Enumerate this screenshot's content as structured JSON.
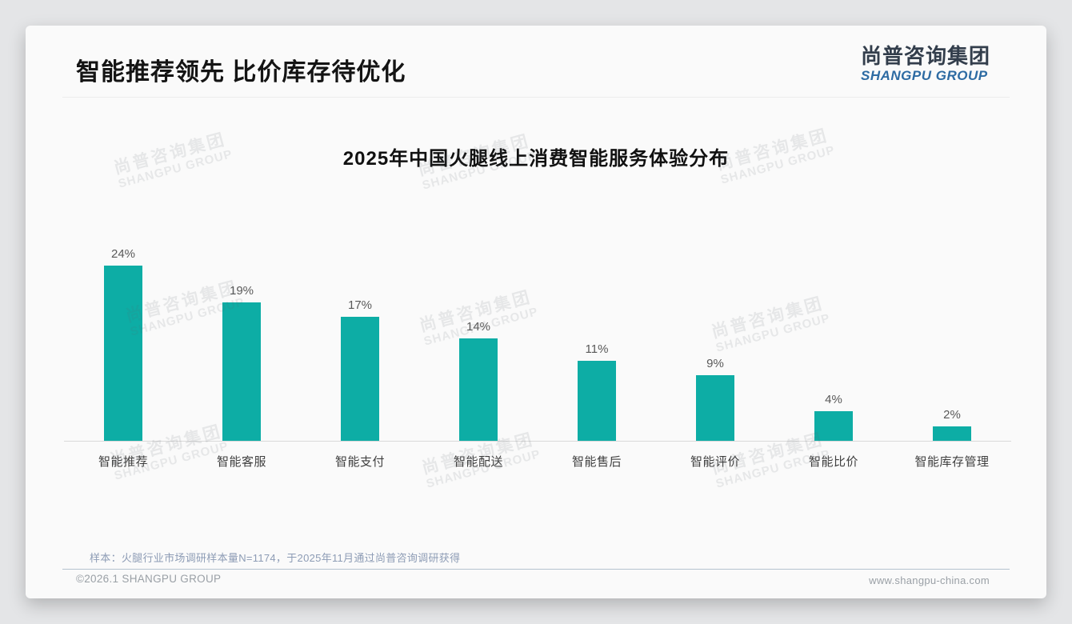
{
  "page_title": "智能推荐领先 比价库存待优化",
  "logo": {
    "cn": "尚普咨询集团",
    "en": "SHANGPU GROUP"
  },
  "watermark": {
    "cn": "尚普咨询集团",
    "en": "SHANGPU GROUP"
  },
  "chart_data": {
    "type": "bar",
    "title": "2025年中国火腿线上消费智能服务体验分布",
    "categories": [
      "智能推荐",
      "智能客服",
      "智能支付",
      "智能配送",
      "智能售后",
      "智能评价",
      "智能比价",
      "智能库存管理"
    ],
    "values": [
      24,
      19,
      17,
      14,
      11,
      9,
      4,
      2
    ],
    "unit": "%",
    "value_labels": [
      "24%",
      "19%",
      "17%",
      "14%",
      "11%",
      "9%",
      "4%",
      "2%"
    ],
    "bar_color": "#0dada5",
    "ylim": [
      0,
      26
    ],
    "grid": false,
    "legend": false,
    "xlabel": "",
    "ylabel": ""
  },
  "footnote": "样本：火腿行业市场调研样本量N=1174，于2025年11月通过尚普咨询调研获得",
  "footer": {
    "copyright": "©2026.1 SHANGPU GROUP",
    "website": "www.shangpu-china.com"
  }
}
